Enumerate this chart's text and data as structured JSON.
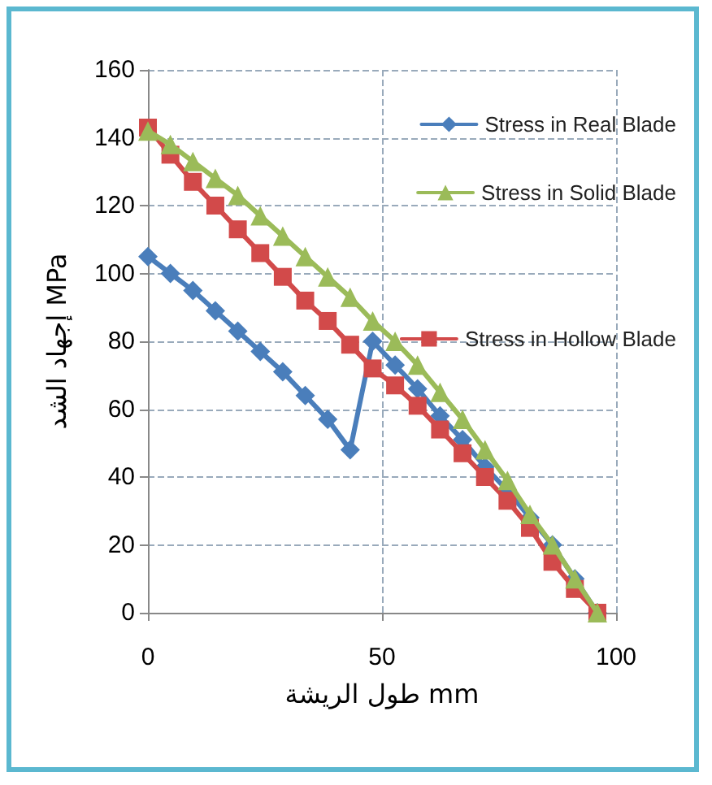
{
  "chart_data": {
    "type": "line",
    "xlabel": "طول الريشة mm",
    "ylabel": "إجهاد الشد MPa",
    "xlim": [
      0,
      100
    ],
    "xticks": [
      0,
      50,
      100
    ],
    "ylim": [
      0,
      160
    ],
    "yticks": [
      0,
      20,
      40,
      60,
      80,
      100,
      120,
      140,
      160
    ],
    "grid": true,
    "legend": "right",
    "line_style": "solid",
    "series": [
      {
        "name": "Stress in Real Blade",
        "color": "#4a7ebb",
        "marker": "diamond",
        "x": [
          0,
          4.8,
          9.6,
          14.4,
          19.2,
          24,
          28.8,
          33.6,
          38.4,
          43.2,
          48,
          52.8,
          57.6,
          62.4,
          67.2,
          72,
          76.8,
          81.6,
          86.4,
          91.2,
          96
        ],
        "values": [
          105,
          100,
          95,
          89,
          83,
          77,
          71,
          64,
          57,
          48,
          80,
          73,
          66,
          58,
          51,
          43,
          36,
          28,
          20,
          10,
          0
        ]
      },
      {
        "name": "Stress in Hollow Blade",
        "color": "#d24a4a",
        "marker": "square",
        "x": [
          0,
          4.8,
          9.6,
          14.4,
          19.2,
          24,
          28.8,
          33.6,
          38.4,
          43.2,
          48,
          52.8,
          57.6,
          62.4,
          67.2,
          72,
          76.8,
          81.6,
          86.4,
          91.2,
          96
        ],
        "values": [
          143,
          135,
          127,
          120,
          113,
          106,
          99,
          92,
          86,
          79,
          72,
          67,
          61,
          54,
          47,
          40,
          33,
          25,
          15,
          7,
          0
        ]
      },
      {
        "name": "Stress in Solid Blade",
        "color": "#9bbb59",
        "marker": "triangle",
        "x": [
          0,
          4.8,
          9.6,
          14.4,
          19.2,
          24,
          28.8,
          33.6,
          38.4,
          43.2,
          48,
          52.8,
          57.6,
          62.4,
          67.2,
          72,
          76.8,
          81.6,
          86.4,
          91.2,
          96
        ],
        "values": [
          142,
          138,
          133,
          128,
          123,
          117,
          111,
          105,
          99,
          93,
          86,
          80,
          73,
          65,
          57,
          48,
          39,
          29,
          20,
          10,
          0
        ]
      }
    ]
  }
}
